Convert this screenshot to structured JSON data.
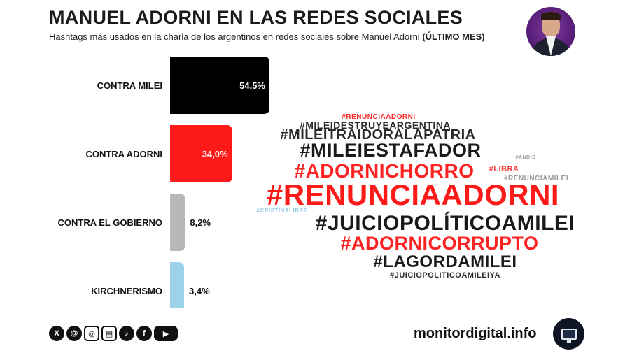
{
  "header": {
    "title": "MANUEL ADORNI EN LAS REDES SOCIALES",
    "subtitle": "Hashtags más usados en la charla de los argentinos en redes sociales sobre Manuel Adorni",
    "subtitle_bold": "(ÚLTIMO MES)"
  },
  "chart_data": [
    {
      "type": "bar",
      "orientation": "horizontal",
      "categories": [
        "CONTRA MILEI",
        "CONTRA ADORNI",
        "CONTRA EL GOBIERNO",
        "KIRCHNERISMO"
      ],
      "values": [
        54.5,
        34.0,
        8.2,
        3.4
      ],
      "value_labels": [
        "54,5%",
        "34,0%",
        "8,2%",
        "3,4%"
      ],
      "colors": [
        "#000000",
        "#ff1a1a",
        "#b8b8b8",
        "#9cd3ea"
      ],
      "xlim": [
        0,
        54.5
      ],
      "value_label_colors": [
        "#ffffff",
        "#ffffff",
        "#111111",
        "#111111"
      ],
      "grid": false,
      "legend": "none"
    }
  ],
  "wordcloud": [
    {
      "text": "#RENUNCIÁADORNI",
      "color": "#ff2a2a"
    },
    {
      "text": "#MILEIDESTRUYEARGENTINA",
      "color": "#2a2a2a"
    },
    {
      "text": "#MILEITRAIDORALAPATRIA",
      "color": "#2a2a2a"
    },
    {
      "text": "#MILEIESTAFADOR",
      "color": "#1a1a1a"
    },
    {
      "text": "#ANDIS",
      "color": "#9a9a9a"
    },
    {
      "text": "#ADORNICHORRO",
      "color": "#ff2222"
    },
    {
      "text": "#LIBRA",
      "color": "#ff3b3b"
    },
    {
      "text": "#RENUNCIAMILEI",
      "color": "#9a9a9a"
    },
    {
      "text": "#RENUNCIAADORNI",
      "color": "#ff1a1a"
    },
    {
      "text": "#CRISTINALIBRE",
      "color": "#8fc9e6"
    },
    {
      "text": "#JUICIOPOLÍTICOAMILEI",
      "color": "#1a1a1a"
    },
    {
      "text": "#ADORNICORRUPTO",
      "color": "#ff2222"
    },
    {
      "text": "#LAGORDAMILEI",
      "color": "#1a1a1a"
    },
    {
      "text": "#JUICIOPOLITICOAMILEIYA",
      "color": "#2a2a2a"
    }
  ],
  "footer": {
    "socials": [
      "x-icon",
      "threads-icon",
      "instagram-icon",
      "newsletter-icon",
      "tiktok-icon",
      "facebook-icon",
      "youtube-icon"
    ],
    "site": "monitordigital.info"
  }
}
